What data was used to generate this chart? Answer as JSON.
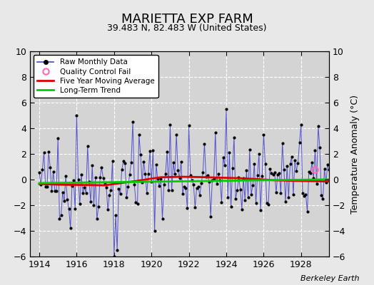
{
  "title": "MARIETTA EXP FARM",
  "subtitle": "39.483 N, 82.483 W (United States)",
  "ylabel": "Temperature Anomaly (°C)",
  "credit": "Berkeley Earth",
  "ylim": [
    -6,
    10
  ],
  "yticks": [
    -6,
    -4,
    -2,
    0,
    2,
    4,
    6,
    8,
    10
  ],
  "xlim": [
    1913.5,
    1929.5
  ],
  "xticks": [
    1914,
    1916,
    1918,
    1920,
    1922,
    1924,
    1926,
    1928
  ],
  "background_color": "#e8e8e8",
  "plot_bg_color": "#d4d4d4",
  "raw_color": "#4444cc",
  "raw_marker_color": "#000000",
  "moving_avg_color": "#dd0000",
  "trend_color": "#00cc00",
  "qc_fail_color": "#ff69b4",
  "seed": 42,
  "n_months": 192,
  "start_year": 1914.0,
  "qc_fail_time": 1928.75,
  "qc_fail_value": 0.8
}
